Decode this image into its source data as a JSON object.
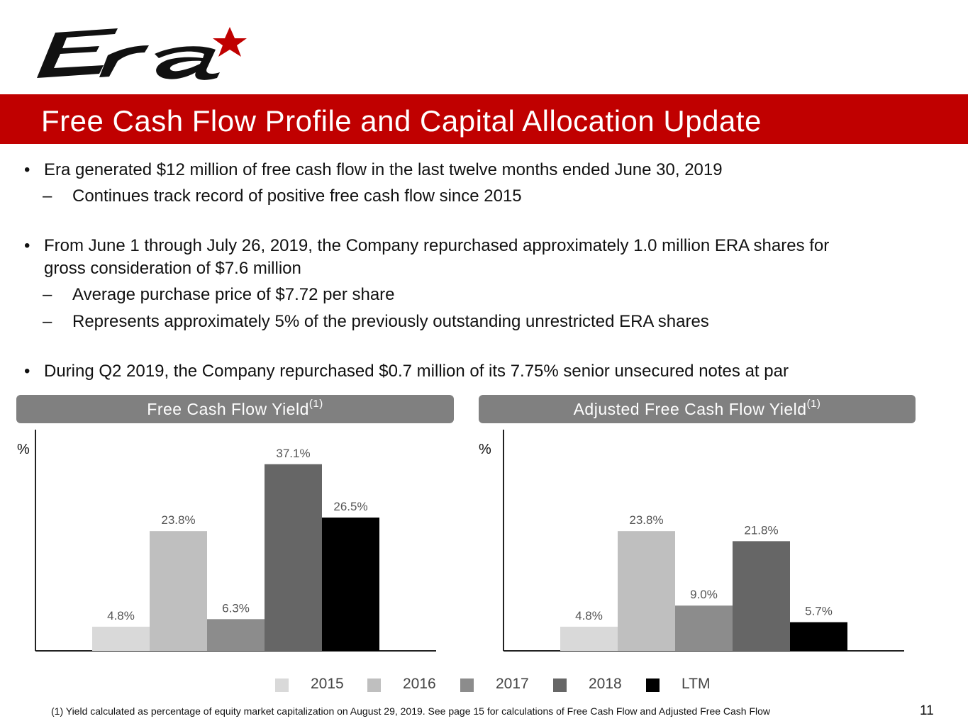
{
  "brand": {
    "logo_text": "Era",
    "accent": "#c00000"
  },
  "title": "Free Cash Flow Profile and Capital Allocation Update",
  "bullets": [
    {
      "level": 1,
      "marker": "•",
      "text": "Era generated $12 million of free cash flow in the last twelve months ended June 30, 2019"
    },
    {
      "level": 2,
      "marker": "–",
      "text": "Continues track record of positive free cash flow since 2015"
    },
    {
      "level": 1,
      "marker": "•",
      "text": "From June 1 through July 26, 2019, the Company repurchased approximately 1.0 million ERA shares for"
    },
    {
      "level": 1,
      "marker": "",
      "text": "gross consideration of $7.6 million"
    },
    {
      "level": 2,
      "marker": "–",
      "text": "Average purchase price of $7.72 per share"
    },
    {
      "level": 2,
      "marker": "–",
      "text": "Represents approximately 5% of the previously outstanding unrestricted ERA shares"
    },
    {
      "level": 1,
      "marker": "•",
      "text": "During Q2 2019, the Company repurchased $0.7 million of its 7.75% senior unsecured notes at par"
    }
  ],
  "chart_data": [
    {
      "type": "bar",
      "title": "Free Cash Flow Yield",
      "title_sup": "(1)",
      "ylabel": "%",
      "categories": [
        "2015",
        "2016",
        "2017",
        "2018",
        "LTM"
      ],
      "values": [
        4.8,
        23.8,
        6.3,
        37.1,
        26.5
      ],
      "value_labels": [
        "4.8%",
        "23.8%",
        "6.3%",
        "37.1%",
        "26.5%"
      ],
      "ylim": [
        0,
        42
      ],
      "grid": false
    },
    {
      "type": "bar",
      "title": "Adjusted Free Cash Flow Yield",
      "title_sup": "(1)",
      "ylabel": "%",
      "categories": [
        "2015",
        "2016",
        "2017",
        "2018",
        "LTM"
      ],
      "values": [
        4.8,
        23.8,
        9.0,
        21.8,
        5.7
      ],
      "value_labels": [
        "4.8%",
        "23.8%",
        "9.0%",
        "21.8%",
        "5.7%"
      ],
      "ylim": [
        0,
        42
      ],
      "grid": false
    }
  ],
  "legend": {
    "placement": "bottom",
    "items": [
      {
        "label": "2015",
        "color": "#d9d9d9"
      },
      {
        "label": "2016",
        "color": "#bfbfbf"
      },
      {
        "label": "2017",
        "color": "#8c8c8c"
      },
      {
        "label": "2018",
        "color": "#666666"
      },
      {
        "label": "LTM",
        "color": "#000000"
      }
    ]
  },
  "series_colors": [
    "#d9d9d9",
    "#bfbfbf",
    "#8c8c8c",
    "#666666",
    "#000000"
  ],
  "footnote": "(1) Yield calculated as percentage of equity market capitalization on August 29, 2019. See page 15 for calculations of Free Cash Flow and Adjusted Free Cash Flow",
  "page_number": "11"
}
